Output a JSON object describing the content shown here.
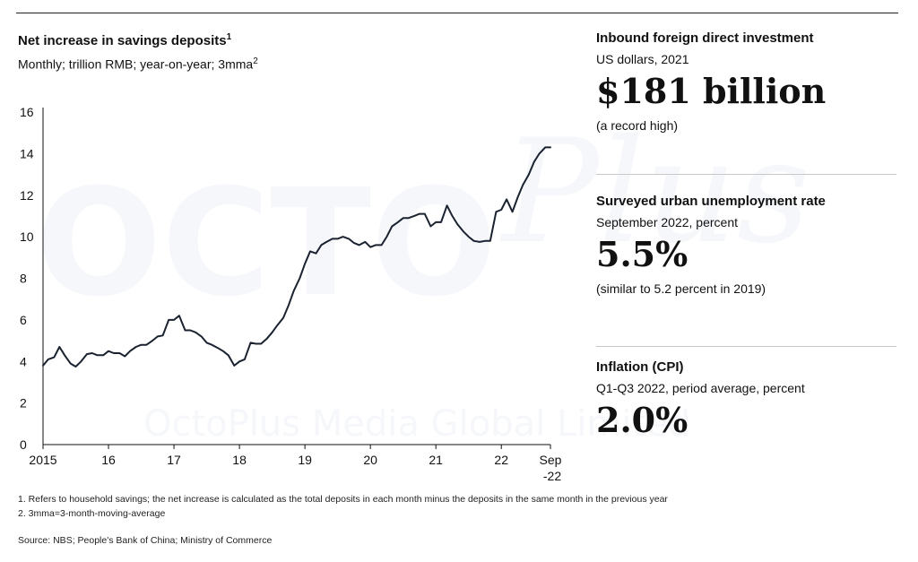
{
  "watermark": {
    "big": "OCTO",
    "script": "Plus",
    "line": "OctoPlus Media Global Limited"
  },
  "chart_data": {
    "type": "line",
    "title": "Net increase in savings deposits",
    "title_sup": "1",
    "subtitle": "Monthly; trillion RMB; year-on-year; 3mma",
    "subtitle_sup": "2",
    "xlabel": "",
    "ylabel": "",
    "ylim": [
      0,
      16
    ],
    "yticks": [
      0,
      2,
      4,
      6,
      8,
      10,
      12,
      14,
      16
    ],
    "xlim": [
      2015.0,
      2022.75
    ],
    "xticks": [
      {
        "value": 2015.0,
        "label": "2015"
      },
      {
        "value": 2016.0,
        "label": "16"
      },
      {
        "value": 2017.0,
        "label": "17"
      },
      {
        "value": 2018.0,
        "label": "18"
      },
      {
        "value": 2019.0,
        "label": "19"
      },
      {
        "value": 2020.0,
        "label": "20"
      },
      {
        "value": 2021.0,
        "label": "21"
      },
      {
        "value": 2022.0,
        "label": "22"
      },
      {
        "value": 2022.75,
        "label": "Sep",
        "label2": "-22"
      }
    ],
    "series": [
      {
        "name": "Net increase in savings deposits",
        "x": [
          2015.0,
          2015.08,
          2015.17,
          2015.25,
          2015.33,
          2015.42,
          2015.5,
          2015.58,
          2015.67,
          2015.75,
          2015.83,
          2015.92,
          2016.0,
          2016.08,
          2016.17,
          2016.25,
          2016.33,
          2016.42,
          2016.5,
          2016.58,
          2016.67,
          2016.75,
          2016.83,
          2016.92,
          2017.0,
          2017.08,
          2017.17,
          2017.25,
          2017.33,
          2017.42,
          2017.5,
          2017.58,
          2017.67,
          2017.75,
          2017.83,
          2017.92,
          2018.0,
          2018.08,
          2018.17,
          2018.25,
          2018.33,
          2018.42,
          2018.5,
          2018.58,
          2018.67,
          2018.75,
          2018.83,
          2018.92,
          2019.0,
          2019.08,
          2019.17,
          2019.25,
          2019.33,
          2019.42,
          2019.5,
          2019.58,
          2019.67,
          2019.75,
          2019.83,
          2019.92,
          2020.0,
          2020.08,
          2020.17,
          2020.25,
          2020.33,
          2020.42,
          2020.5,
          2020.58,
          2020.67,
          2020.75,
          2020.83,
          2020.92,
          2021.0,
          2021.08,
          2021.17,
          2021.25,
          2021.33,
          2021.42,
          2021.5,
          2021.58,
          2021.67,
          2021.75,
          2021.83,
          2021.92,
          2022.0,
          2022.08,
          2022.17,
          2022.25,
          2022.33,
          2022.42,
          2022.5,
          2022.58,
          2022.67,
          2022.75
        ],
        "values": [
          3.8,
          4.1,
          4.2,
          4.7,
          4.3,
          3.9,
          3.75,
          4.0,
          4.35,
          4.4,
          4.3,
          4.3,
          4.5,
          4.4,
          4.4,
          4.25,
          4.5,
          4.7,
          4.8,
          4.8,
          5.0,
          5.2,
          5.25,
          6.0,
          6.0,
          6.2,
          5.5,
          5.5,
          5.4,
          5.2,
          4.9,
          4.8,
          4.65,
          4.5,
          4.3,
          3.8,
          4.0,
          4.1,
          4.9,
          4.85,
          4.85,
          5.1,
          5.4,
          5.75,
          6.1,
          6.7,
          7.4,
          8.0,
          8.7,
          9.3,
          9.2,
          9.6,
          9.75,
          9.9,
          9.9,
          10.0,
          9.9,
          9.7,
          9.6,
          9.75,
          9.5,
          9.6,
          9.6,
          10.0,
          10.5,
          10.7,
          10.9,
          10.9,
          11.0,
          11.1,
          11.1,
          10.5,
          10.7,
          10.7,
          11.5,
          11.0,
          10.6,
          10.25,
          10.0,
          9.8,
          9.75,
          9.8,
          9.8,
          11.2,
          11.3,
          11.8,
          11.2,
          11.9,
          12.5,
          13.0,
          13.6,
          14.0,
          14.3,
          14.3
        ]
      }
    ]
  },
  "panels": [
    {
      "title": "Inbound foreign direct investment",
      "subtitle": "US dollars, 2021",
      "value": "$181 billion",
      "note": "(a record high)"
    },
    {
      "title": "Surveyed urban unemployment rate",
      "subtitle": "September 2022, percent",
      "value": "5.5%",
      "note": "(similar to 5.2 percent in 2019)"
    },
    {
      "title": "Inflation (CPI)",
      "subtitle": "Q1-Q3 2022, period average, percent",
      "value": "2.0%",
      "note": ""
    }
  ],
  "footnotes": [
    "1. Refers to household savings; the net increase is calculated as the total deposits in each month minus the deposits in the same month in the previous year",
    "2. 3mma=3-month-moving-average"
  ],
  "source": "Source: NBS; People's Bank of China; Ministry of Commerce",
  "colors": {
    "line": "#1a2230",
    "text": "#111111",
    "axis": "#111111",
    "divider": "#c8c8c8"
  }
}
